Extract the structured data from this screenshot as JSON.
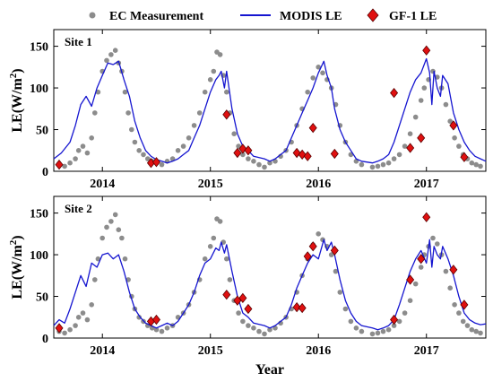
{
  "figure": {
    "xlabel": "Year",
    "ylabel_main": "LE(W/m",
    "ylabel_sup": "2",
    "ylabel_close": ")",
    "legend": [
      {
        "label": "EC Measurement",
        "marker": "dot",
        "color": "#8c8c8c"
      },
      {
        "label": "MODIS LE",
        "marker": "line",
        "color": "#1515d0"
      },
      {
        "label": "GF-1 LE",
        "marker": "diamond",
        "color": "#e01010"
      }
    ],
    "colors": {
      "ec": "#8c8c8c",
      "modis": "#1515d0",
      "gf1": "#e01010",
      "gf1_edge": "#5a0000"
    }
  },
  "chart_data": [
    {
      "type": "scatter",
      "panel_label": "Site 1",
      "xlim": [
        2013.55,
        2017.55
      ],
      "ylim": [
        0,
        170
      ],
      "xticks": [
        2014,
        2015,
        2016,
        2017
      ],
      "xtick_labels": [
        "2014",
        "2015",
        "2016",
        "2017"
      ],
      "yticks": [
        0,
        50,
        100,
        150
      ],
      "ytick_labels": [
        "0",
        "50",
        "100",
        "150"
      ],
      "series": [
        {
          "name": "EC Measurement",
          "kind": "points",
          "x": [
            2013.6,
            2013.65,
            2013.7,
            2013.75,
            2013.78,
            2013.82,
            2013.86,
            2013.9,
            2013.93,
            2013.96,
            2014.0,
            2014.04,
            2014.08,
            2014.12,
            2014.15,
            2014.18,
            2014.21,
            2014.24,
            2014.27,
            2014.3,
            2014.34,
            2014.38,
            2014.42,
            2014.46,
            2014.5,
            2014.55,
            2014.6,
            2014.65,
            2014.7,
            2014.75,
            2014.8,
            2014.85,
            2014.9,
            2014.95,
            2015.0,
            2015.03,
            2015.06,
            2015.09,
            2015.12,
            2015.15,
            2015.18,
            2015.22,
            2015.26,
            2015.3,
            2015.35,
            2015.4,
            2015.45,
            2015.5,
            2015.55,
            2015.6,
            2015.65,
            2015.7,
            2015.75,
            2015.8,
            2015.85,
            2015.9,
            2015.95,
            2016.0,
            2016.04,
            2016.08,
            2016.12,
            2016.16,
            2016.2,
            2016.25,
            2016.3,
            2016.35,
            2016.4,
            2016.5,
            2016.55,
            2016.6,
            2016.65,
            2016.7,
            2016.75,
            2016.8,
            2016.85,
            2016.9,
            2016.95,
            2016.98,
            2017.02,
            2017.06,
            2017.1,
            2017.14,
            2017.18,
            2017.22,
            2017.26,
            2017.3,
            2017.34,
            2017.38,
            2017.42,
            2017.46,
            2017.5
          ],
          "y": [
            8,
            6,
            10,
            15,
            25,
            30,
            22,
            40,
            70,
            95,
            120,
            133,
            140,
            145,
            130,
            120,
            95,
            70,
            50,
            35,
            25,
            20,
            15,
            12,
            10,
            8,
            12,
            15,
            25,
            30,
            40,
            55,
            70,
            95,
            110,
            120,
            143,
            140,
            115,
            95,
            70,
            45,
            30,
            20,
            15,
            12,
            8,
            5,
            10,
            12,
            18,
            25,
            35,
            55,
            75,
            95,
            112,
            125,
            118,
            110,
            100,
            80,
            55,
            35,
            20,
            12,
            8,
            5,
            6,
            8,
            10,
            15,
            20,
            30,
            45,
            65,
            85,
            100,
            110,
            120,
            113,
            100,
            80,
            60,
            40,
            30,
            20,
            15,
            10,
            8,
            6
          ]
        },
        {
          "name": "MODIS LE",
          "kind": "line",
          "x": [
            2013.55,
            2013.62,
            2013.7,
            2013.75,
            2013.8,
            2013.85,
            2013.9,
            2013.95,
            2014.0,
            2014.05,
            2014.1,
            2014.15,
            2014.2,
            2014.25,
            2014.3,
            2014.35,
            2014.4,
            2014.45,
            2014.5,
            2014.55,
            2014.6,
            2014.65,
            2014.7,
            2014.75,
            2014.8,
            2014.85,
            2014.9,
            2014.95,
            2015.0,
            2015.05,
            2015.08,
            2015.1,
            2015.13,
            2015.15,
            2015.2,
            2015.25,
            2015.3,
            2015.35,
            2015.4,
            2015.5,
            2015.55,
            2015.6,
            2015.65,
            2015.7,
            2015.75,
            2015.8,
            2015.85,
            2015.9,
            2015.95,
            2016.0,
            2016.05,
            2016.08,
            2016.12,
            2016.15,
            2016.2,
            2016.25,
            2016.3,
            2016.35,
            2016.4,
            2016.5,
            2016.55,
            2016.6,
            2016.65,
            2016.7,
            2016.75,
            2016.8,
            2016.85,
            2016.9,
            2016.95,
            2017.0,
            2017.03,
            2017.05,
            2017.07,
            2017.1,
            2017.13,
            2017.15,
            2017.2,
            2017.25,
            2017.3,
            2017.35,
            2017.4,
            2017.45,
            2017.5,
            2017.55
          ],
          "y": [
            15,
            22,
            35,
            55,
            80,
            90,
            78,
            100,
            115,
            130,
            128,
            132,
            110,
            90,
            60,
            40,
            25,
            18,
            14,
            12,
            10,
            12,
            15,
            20,
            25,
            40,
            55,
            75,
            95,
            110,
            115,
            120,
            100,
            120,
            75,
            45,
            30,
            25,
            18,
            15,
            12,
            15,
            20,
            25,
            40,
            55,
            70,
            85,
            100,
            118,
            132,
            115,
            100,
            75,
            50,
            35,
            25,
            15,
            12,
            10,
            12,
            15,
            20,
            35,
            55,
            75,
            95,
            110,
            118,
            135,
            118,
            80,
            120,
            100,
            90,
            115,
            105,
            70,
            50,
            35,
            25,
            18,
            15,
            12
          ]
        },
        {
          "name": "GF-1 LE",
          "kind": "diamonds",
          "x": [
            2013.6,
            2014.45,
            2014.5,
            2015.15,
            2015.25,
            2015.3,
            2015.35,
            2015.8,
            2015.85,
            2015.9,
            2015.95,
            2016.15,
            2016.7,
            2016.85,
            2016.95,
            2017.0,
            2017.25,
            2017.35
          ],
          "y": [
            8,
            10,
            11,
            68,
            22,
            27,
            25,
            22,
            20,
            18,
            52,
            21,
            94,
            28,
            40,
            145,
            55,
            17
          ]
        }
      ]
    },
    {
      "type": "scatter",
      "panel_label": "Site 2",
      "xlim": [
        2013.55,
        2017.55
      ],
      "ylim": [
        0,
        170
      ],
      "xticks": [
        2014,
        2015,
        2016,
        2017
      ],
      "xtick_labels": [
        "2014",
        "2015",
        "2016",
        "2017"
      ],
      "yticks": [
        0,
        50,
        100,
        150
      ],
      "ytick_labels": [
        "0",
        "50",
        "100",
        "150"
      ],
      "series": [
        {
          "name": "EC Measurement",
          "kind": "points",
          "x": [
            2013.6,
            2013.65,
            2013.7,
            2013.75,
            2013.78,
            2013.82,
            2013.86,
            2013.9,
            2013.93,
            2013.96,
            2014.0,
            2014.04,
            2014.08,
            2014.12,
            2014.15,
            2014.18,
            2014.21,
            2014.24,
            2014.27,
            2014.3,
            2014.34,
            2014.38,
            2014.42,
            2014.46,
            2014.5,
            2014.55,
            2014.6,
            2014.65,
            2014.7,
            2014.75,
            2014.8,
            2014.85,
            2014.9,
            2014.95,
            2015.0,
            2015.03,
            2015.06,
            2015.09,
            2015.12,
            2015.15,
            2015.18,
            2015.22,
            2015.26,
            2015.3,
            2015.35,
            2015.4,
            2015.45,
            2015.5,
            2015.55,
            2015.6,
            2015.65,
            2015.7,
            2015.75,
            2015.8,
            2015.85,
            2015.9,
            2015.95,
            2016.0,
            2016.04,
            2016.08,
            2016.12,
            2016.16,
            2016.2,
            2016.25,
            2016.3,
            2016.35,
            2016.4,
            2016.5,
            2016.55,
            2016.6,
            2016.65,
            2016.7,
            2016.75,
            2016.8,
            2016.85,
            2016.9,
            2016.95,
            2016.98,
            2017.02,
            2017.06,
            2017.1,
            2017.14,
            2017.18,
            2017.22,
            2017.26,
            2017.3,
            2017.34,
            2017.38,
            2017.42,
            2017.46,
            2017.5
          ],
          "y": [
            8,
            6,
            10,
            15,
            25,
            30,
            22,
            40,
            70,
            95,
            120,
            133,
            140,
            148,
            130,
            120,
            95,
            70,
            50,
            35,
            25,
            20,
            15,
            12,
            10,
            8,
            12,
            15,
            25,
            30,
            40,
            55,
            70,
            95,
            110,
            120,
            143,
            140,
            115,
            95,
            70,
            45,
            30,
            20,
            15,
            12,
            8,
            5,
            10,
            12,
            18,
            25,
            35,
            55,
            75,
            95,
            112,
            125,
            118,
            110,
            100,
            80,
            55,
            35,
            20,
            12,
            8,
            5,
            6,
            8,
            10,
            15,
            20,
            30,
            45,
            65,
            85,
            100,
            110,
            120,
            113,
            100,
            80,
            60,
            40,
            30,
            20,
            15,
            10,
            8,
            6
          ]
        },
        {
          "name": "MODIS LE",
          "kind": "line",
          "x": [
            2013.55,
            2013.6,
            2013.65,
            2013.7,
            2013.75,
            2013.8,
            2013.85,
            2013.9,
            2013.95,
            2014.0,
            2014.05,
            2014.1,
            2014.15,
            2014.2,
            2014.25,
            2014.3,
            2014.35,
            2014.4,
            2014.45,
            2014.5,
            2014.55,
            2014.6,
            2014.65,
            2014.7,
            2014.75,
            2014.8,
            2014.85,
            2014.9,
            2014.95,
            2015.0,
            2015.05,
            2015.08,
            2015.1,
            2015.13,
            2015.15,
            2015.2,
            2015.25,
            2015.3,
            2015.35,
            2015.4,
            2015.5,
            2015.55,
            2015.6,
            2015.65,
            2015.7,
            2015.75,
            2015.8,
            2015.85,
            2015.9,
            2015.95,
            2016.0,
            2016.05,
            2016.08,
            2016.12,
            2016.15,
            2016.2,
            2016.25,
            2016.3,
            2016.35,
            2016.4,
            2016.5,
            2016.55,
            2016.6,
            2016.65,
            2016.7,
            2016.75,
            2016.8,
            2016.85,
            2016.9,
            2016.95,
            2017.0,
            2017.03,
            2017.05,
            2017.07,
            2017.1,
            2017.13,
            2017.15,
            2017.2,
            2017.25,
            2017.3,
            2017.35,
            2017.4,
            2017.45,
            2017.5,
            2017.55
          ],
          "y": [
            15,
            22,
            18,
            35,
            55,
            75,
            62,
            90,
            85,
            100,
            102,
            95,
            100,
            80,
            55,
            35,
            25,
            18,
            15,
            12,
            15,
            18,
            15,
            20,
            30,
            40,
            55,
            75,
            90,
            95,
            108,
            105,
            115,
            102,
            112,
            80,
            50,
            30,
            25,
            18,
            15,
            12,
            15,
            20,
            25,
            40,
            60,
            75,
            90,
            100,
            95,
            118,
            105,
            115,
            100,
            70,
            45,
            30,
            20,
            15,
            12,
            10,
            12,
            15,
            22,
            40,
            60,
            80,
            95,
            105,
            90,
            118,
            85,
            110,
            100,
            95,
            110,
            95,
            75,
            50,
            30,
            22,
            18,
            16,
            17
          ]
        },
        {
          "name": "GF-1 LE",
          "kind": "diamonds",
          "x": [
            2013.6,
            2014.45,
            2014.5,
            2015.15,
            2015.25,
            2015.3,
            2015.35,
            2015.8,
            2015.85,
            2015.9,
            2015.95,
            2016.15,
            2016.7,
            2016.85,
            2016.95,
            2017.0,
            2017.25,
            2017.35
          ],
          "y": [
            12,
            20,
            22,
            52,
            45,
            48,
            35,
            37,
            36,
            98,
            110,
            105,
            22,
            70,
            95,
            145,
            82,
            40
          ]
        }
      ]
    }
  ]
}
